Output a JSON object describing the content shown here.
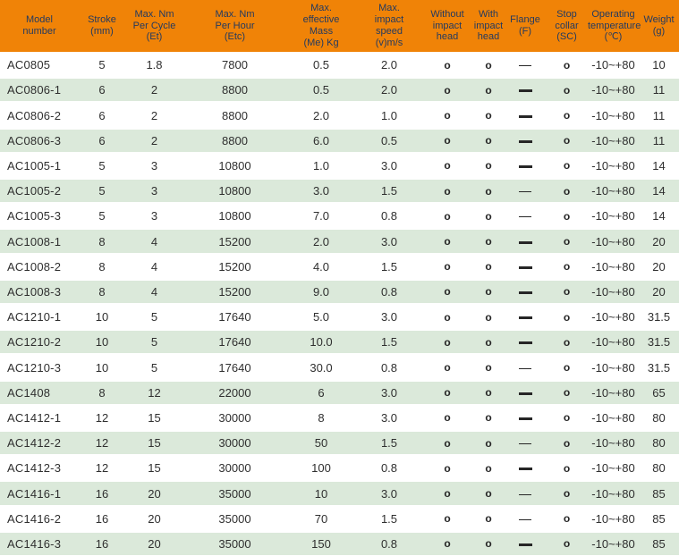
{
  "colors": {
    "header_bg": "#f08307",
    "header_text": "#233a60",
    "row_stripe": "#dbe9da",
    "body_text": "#2f2f2f"
  },
  "table": {
    "columns": [
      {
        "id": "model",
        "label": "Model\nnumber"
      },
      {
        "id": "stroke",
        "label": "Stroke\n(mm)"
      },
      {
        "id": "et",
        "label": "Max. Nm\nPer Cycle\n(Et)"
      },
      {
        "id": "etc",
        "label": "Max. Nm\nPer Hour\n(Etc)"
      },
      {
        "id": "mass",
        "label": "Max.\neffective\nMass\n(Me) Kg"
      },
      {
        "id": "speed",
        "label": "Max.\nimpact\nspeed\n(v)m/s"
      },
      {
        "id": "without_head",
        "label": "Without\nimpact\nhead"
      },
      {
        "id": "with_head",
        "label": "With\nimpact\nhead"
      },
      {
        "id": "flange",
        "label": "Flange\n(F)"
      },
      {
        "id": "stop_collar",
        "label": "Stop\ncollar\n(SC)"
      },
      {
        "id": "temp",
        "label": "Operating\ntemperature\n(℃)"
      },
      {
        "id": "weight",
        "label": "Weight\n(g)"
      }
    ],
    "rows": [
      {
        "model": "AC0805",
        "stroke": "5",
        "et": "1.8",
        "etc": "7800",
        "mass": "0.5",
        "speed": "2.0",
        "without_head": "o",
        "with_head": "o",
        "flange": "thin",
        "stop_collar": "o",
        "temp": "-10~+80",
        "weight": "10"
      },
      {
        "model": "AC0806-1",
        "stroke": "6",
        "et": "2",
        "etc": "8800",
        "mass": "0.5",
        "speed": "2.0",
        "without_head": "o",
        "with_head": "o",
        "flange": "bold",
        "stop_collar": "o",
        "temp": "-10~+80",
        "weight": "11"
      },
      {
        "model": "AC0806-2",
        "stroke": "6",
        "et": "2",
        "etc": "8800",
        "mass": "2.0",
        "speed": "1.0",
        "without_head": "o",
        "with_head": "o",
        "flange": "bold",
        "stop_collar": "o",
        "temp": "-10~+80",
        "weight": "11"
      },
      {
        "model": "AC0806-3",
        "stroke": "6",
        "et": "2",
        "etc": "8800",
        "mass": "6.0",
        "speed": "0.5",
        "without_head": "o",
        "with_head": "o",
        "flange": "bold",
        "stop_collar": "o",
        "temp": "-10~+80",
        "weight": "11"
      },
      {
        "model": "AC1005-1",
        "stroke": "5",
        "et": "3",
        "etc": "10800",
        "mass": "1.0",
        "speed": "3.0",
        "without_head": "o",
        "with_head": "o",
        "flange": "bold",
        "stop_collar": "o",
        "temp": "-10~+80",
        "weight": "14"
      },
      {
        "model": "AC1005-2",
        "stroke": "5",
        "et": "3",
        "etc": "10800",
        "mass": "3.0",
        "speed": "1.5",
        "without_head": "o",
        "with_head": "o",
        "flange": "thin",
        "stop_collar": "o",
        "temp": "-10~+80",
        "weight": "14"
      },
      {
        "model": "AC1005-3",
        "stroke": "5",
        "et": "3",
        "etc": "10800",
        "mass": "7.0",
        "speed": "0.8",
        "without_head": "o",
        "with_head": "o",
        "flange": "thin",
        "stop_collar": "o",
        "temp": "-10~+80",
        "weight": "14"
      },
      {
        "model": "AC1008-1",
        "stroke": "8",
        "et": "4",
        "etc": "15200",
        "mass": "2.0",
        "speed": "3.0",
        "without_head": "o",
        "with_head": "o",
        "flange": "bold",
        "stop_collar": "o",
        "temp": "-10~+80",
        "weight": "20"
      },
      {
        "model": "AC1008-2",
        "stroke": "8",
        "et": "4",
        "etc": "15200",
        "mass": "4.0",
        "speed": "1.5",
        "without_head": "o",
        "with_head": "o",
        "flange": "bold",
        "stop_collar": "o",
        "temp": "-10~+80",
        "weight": "20"
      },
      {
        "model": "AC1008-3",
        "stroke": "8",
        "et": "4",
        "etc": "15200",
        "mass": "9.0",
        "speed": "0.8",
        "without_head": "o",
        "with_head": "o",
        "flange": "bold",
        "stop_collar": "o",
        "temp": "-10~+80",
        "weight": "20"
      },
      {
        "model": "AC1210-1",
        "stroke": "10",
        "et": "5",
        "etc": "17640",
        "mass": "5.0",
        "speed": "3.0",
        "without_head": "o",
        "with_head": "o",
        "flange": "bold",
        "stop_collar": "o",
        "temp": "-10~+80",
        "weight": "31.5"
      },
      {
        "model": "AC1210-2",
        "stroke": "10",
        "et": "5",
        "etc": "17640",
        "mass": "10.0",
        "speed": "1.5",
        "without_head": "o",
        "with_head": "o",
        "flange": "bold",
        "stop_collar": "o",
        "temp": "-10~+80",
        "weight": "31.5"
      },
      {
        "model": "AC1210-3",
        "stroke": "10",
        "et": "5",
        "etc": "17640",
        "mass": "30.0",
        "speed": "0.8",
        "without_head": "o",
        "with_head": "o",
        "flange": "thin",
        "stop_collar": "o",
        "temp": "-10~+80",
        "weight": "31.5"
      },
      {
        "model": "AC1408",
        "stroke": "8",
        "et": "12",
        "etc": "22000",
        "mass": "6",
        "speed": "3.0",
        "without_head": "o",
        "with_head": "o",
        "flange": "bold",
        "stop_collar": "o",
        "temp": "-10~+80",
        "weight": "65"
      },
      {
        "model": "AC1412-1",
        "stroke": "12",
        "et": "15",
        "etc": "30000",
        "mass": "8",
        "speed": "3.0",
        "without_head": "o",
        "with_head": "o",
        "flange": "bold",
        "stop_collar": "o",
        "temp": "-10~+80",
        "weight": "80"
      },
      {
        "model": "AC1412-2",
        "stroke": "12",
        "et": "15",
        "etc": "30000",
        "mass": "50",
        "speed": "1.5",
        "without_head": "o",
        "with_head": "o",
        "flange": "thin",
        "stop_collar": "o",
        "temp": "-10~+80",
        "weight": "80"
      },
      {
        "model": "AC1412-3",
        "stroke": "12",
        "et": "15",
        "etc": "30000",
        "mass": "100",
        "speed": "0.8",
        "without_head": "o",
        "with_head": "o",
        "flange": "bold",
        "stop_collar": "o",
        "temp": "-10~+80",
        "weight": "80"
      },
      {
        "model": "AC1416-1",
        "stroke": "16",
        "et": "20",
        "etc": "35000",
        "mass": "10",
        "speed": "3.0",
        "without_head": "o",
        "with_head": "o",
        "flange": "thin",
        "stop_collar": "o",
        "temp": "-10~+80",
        "weight": "85"
      },
      {
        "model": "AC1416-2",
        "stroke": "16",
        "et": "20",
        "etc": "35000",
        "mass": "70",
        "speed": "1.5",
        "without_head": "o",
        "with_head": "o",
        "flange": "thin",
        "stop_collar": "o",
        "temp": "-10~+80",
        "weight": "85"
      },
      {
        "model": "AC1416-3",
        "stroke": "16",
        "et": "20",
        "etc": "35000",
        "mass": "150",
        "speed": "0.8",
        "without_head": "o",
        "with_head": "o",
        "flange": "bold",
        "stop_collar": "o",
        "temp": "-10~+80",
        "weight": "85"
      }
    ]
  }
}
